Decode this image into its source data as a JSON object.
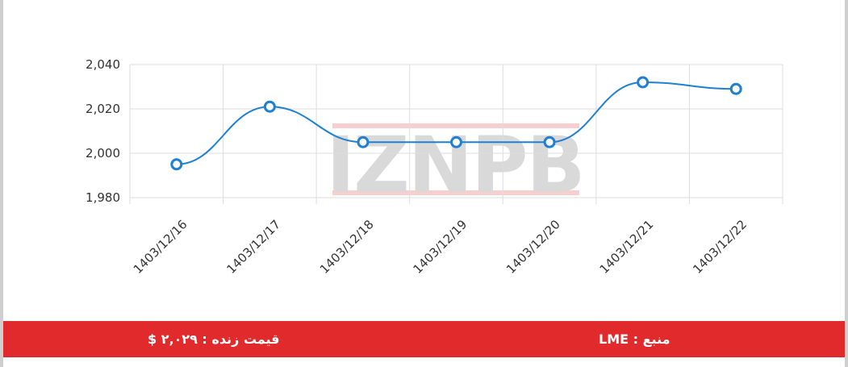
{
  "chart_data": {
    "type": "line",
    "categories": [
      "1403/12/16",
      "1403/12/17",
      "1403/12/18",
      "1403/12/19",
      "1403/12/20",
      "1403/12/21",
      "1403/12/22"
    ],
    "series": [
      {
        "values": [
          1995,
          2021,
          2005,
          2005,
          2005,
          2032,
          2029
        ]
      }
    ],
    "y_ticks": [
      "1,980",
      "2,000",
      "2,020",
      "2,040"
    ],
    "ylim": [
      1980,
      2040
    ],
    "grid": true,
    "line_color": "#1f7fd1",
    "marker_fill": "#ffffff",
    "watermark": "IZNPB"
  },
  "footer": {
    "price_label": "قیمت زنده : ۲,۰۲۹ $",
    "source_label": "منبع : LME",
    "background": "#e12a2b"
  }
}
